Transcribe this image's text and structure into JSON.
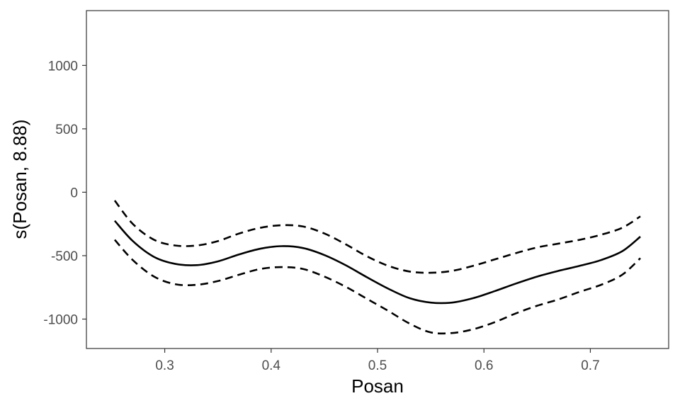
{
  "chart_data": {
    "type": "line",
    "xlabel": "Posan",
    "ylabel": "s(Posan, 8.88)",
    "xlim": [
      0.2264,
      0.7736
    ],
    "ylim": [
      -1232,
      1432
    ],
    "x_ticks": [
      0.3,
      0.4,
      0.5,
      0.6,
      0.7
    ],
    "x_tick_labels": [
      "0.3",
      "0.4",
      "0.5",
      "0.6",
      "0.7"
    ],
    "y_ticks": [
      1000,
      500,
      0,
      -500,
      -1000
    ],
    "y_tick_labels": [
      "1000",
      "500",
      "0",
      "-500",
      "-1000"
    ],
    "grid": false,
    "x": [
      0.253,
      0.27,
      0.29,
      0.31,
      0.33,
      0.35,
      0.37,
      0.39,
      0.41,
      0.43,
      0.45,
      0.47,
      0.49,
      0.51,
      0.53,
      0.55,
      0.57,
      0.59,
      0.61,
      0.63,
      0.65,
      0.67,
      0.69,
      0.71,
      0.73,
      0.747
    ],
    "series": [
      {
        "style": "solid",
        "values": [
          -225,
          -385,
          -510,
          -565,
          -575,
          -545,
          -490,
          -445,
          -425,
          -440,
          -495,
          -575,
          -670,
          -760,
          -835,
          -870,
          -870,
          -835,
          -780,
          -720,
          -665,
          -620,
          -580,
          -535,
          -465,
          -350
        ]
      },
      {
        "style": "dashed",
        "values": [
          -65,
          -250,
          -375,
          -420,
          -420,
          -385,
          -325,
          -280,
          -260,
          -270,
          -325,
          -410,
          -505,
          -580,
          -625,
          -635,
          -620,
          -580,
          -530,
          -480,
          -435,
          -405,
          -375,
          -335,
          -280,
          -190
        ]
      },
      {
        "style": "dashed",
        "values": [
          -375,
          -535,
          -665,
          -725,
          -730,
          -700,
          -650,
          -605,
          -590,
          -605,
          -665,
          -745,
          -840,
          -935,
          -1035,
          -1105,
          -1110,
          -1080,
          -1025,
          -955,
          -895,
          -845,
          -785,
          -730,
          -650,
          -520
        ]
      }
    ],
    "line_color": "#000000"
  }
}
